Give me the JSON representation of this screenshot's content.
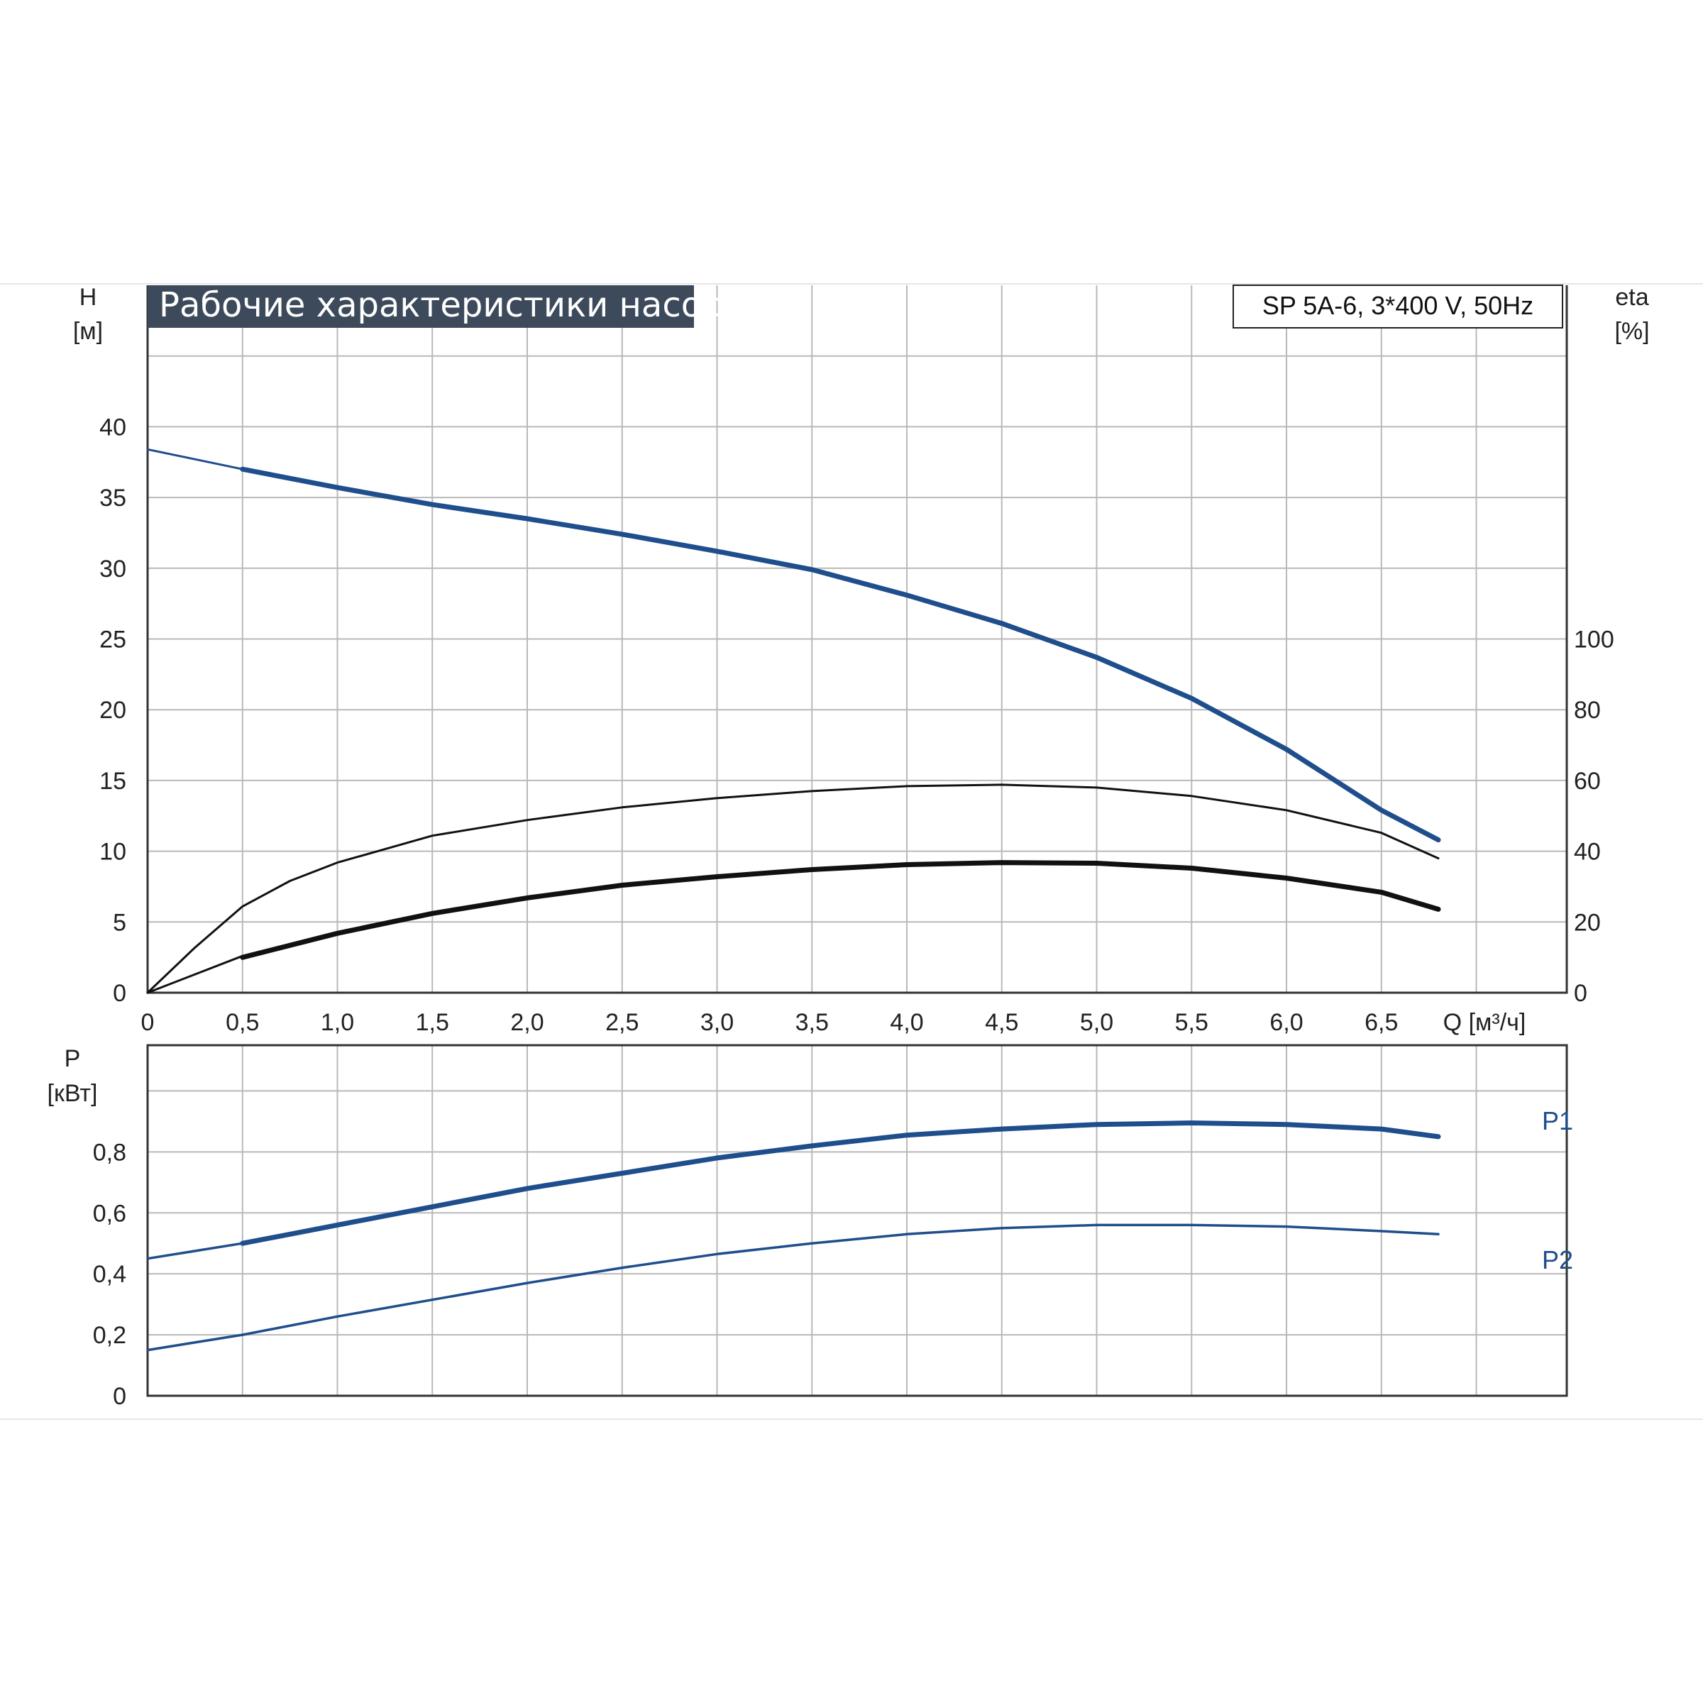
{
  "colors": {
    "head": "#1f4e8c",
    "efficiency": "#111111",
    "power": "#1f4e8c",
    "title_background": "#3d4a5c",
    "grid": "#b9b9b9"
  },
  "chart_data": [
    {
      "type": "line",
      "title": "Рабочие характеристики насоса",
      "model": "SP 5A-6, 3*400 V, 50Hz",
      "xlabel": "Q [м³/ч]",
      "x_ticks": [
        "0",
        "0,5",
        "1,0",
        "1,5",
        "2,0",
        "2,5",
        "3,0",
        "3,5",
        "4,0",
        "4,5",
        "5,0",
        "5,5",
        "6,0",
        "6,5"
      ],
      "xlim": [
        0,
        7.5
      ],
      "ylabel_left": [
        "H",
        "[м]"
      ],
      "y_ticks_left": [
        "0",
        "5",
        "10",
        "15",
        "20",
        "25",
        "30",
        "35",
        "40"
      ],
      "ylim_left": [
        0,
        50
      ],
      "ylabel_right": [
        "eta",
        "[%]"
      ],
      "y_ticks_right": [
        "0",
        "20",
        "40",
        "60",
        "80",
        "100"
      ],
      "ylim_right": [
        0,
        200
      ],
      "grid": true,
      "series": [
        {
          "axis": "left",
          "style": "thin",
          "points": [
            [
              0,
              38.4
            ],
            [
              0.5,
              37.0
            ]
          ]
        },
        {
          "axis": "left",
          "style": "bold",
          "points": [
            [
              0.5,
              37.0
            ],
            [
              1.0,
              35.7
            ],
            [
              1.5,
              34.5
            ],
            [
              2.0,
              33.5
            ],
            [
              2.5,
              32.4
            ],
            [
              3.0,
              31.2
            ],
            [
              3.5,
              29.9
            ],
            [
              4.0,
              28.1
            ],
            [
              4.5,
              26.1
            ],
            [
              5.0,
              23.7
            ],
            [
              5.5,
              20.8
            ],
            [
              6.0,
              17.2
            ],
            [
              6.5,
              12.9
            ],
            [
              6.8,
              10.8
            ]
          ]
        },
        {
          "axis": "right",
          "style": "thin",
          "points": [
            [
              0,
              0
            ],
            [
              0.25,
              12.8
            ],
            [
              0.5,
              24.4
            ],
            [
              0.75,
              31.6
            ],
            [
              1.0,
              36.8
            ],
            [
              1.5,
              44.4
            ],
            [
              2.0,
              48.8
            ],
            [
              2.5,
              52.4
            ],
            [
              3.0,
              55.0
            ],
            [
              3.5,
              57.0
            ],
            [
              4.0,
              58.4
            ],
            [
              4.5,
              58.8
            ],
            [
              5.0,
              58.0
            ],
            [
              5.5,
              55.6
            ],
            [
              6.0,
              51.6
            ],
            [
              6.5,
              45.2
            ],
            [
              6.8,
              38.0
            ]
          ]
        },
        {
          "axis": "right",
          "style": "thin",
          "points": [
            [
              0,
              0
            ],
            [
              0.5,
              10.4
            ]
          ]
        },
        {
          "axis": "right",
          "style": "bold",
          "points": [
            [
              0.5,
              10.0
            ],
            [
              1.0,
              16.8
            ],
            [
              1.5,
              22.4
            ],
            [
              2.0,
              26.8
            ],
            [
              2.5,
              30.4
            ],
            [
              3.0,
              32.8
            ],
            [
              3.5,
              34.8
            ],
            [
              4.0,
              36.2
            ],
            [
              4.5,
              36.8
            ],
            [
              5.0,
              36.6
            ],
            [
              5.5,
              35.2
            ],
            [
              6.0,
              32.4
            ],
            [
              6.5,
              28.4
            ],
            [
              6.8,
              23.6
            ]
          ]
        }
      ]
    },
    {
      "type": "line",
      "ylabel": [
        "P",
        "[кВт]"
      ],
      "y_ticks": [
        "0",
        "0,2",
        "0,4",
        "0,6",
        "0,8"
      ],
      "ylim": [
        0,
        1.15
      ],
      "xlim": [
        0,
        7.5
      ],
      "grid": true,
      "series": [
        {
          "name": "P1",
          "segments": [
            {
              "style": "thin",
              "points": [
                [
                  0,
                  0.45
                ],
                [
                  0.5,
                  0.5
                ]
              ]
            },
            {
              "style": "bold",
              "points": [
                [
                  0.5,
                  0.5
                ],
                [
                  1.0,
                  0.56
                ],
                [
                  1.5,
                  0.62
                ],
                [
                  2.0,
                  0.68
                ],
                [
                  2.5,
                  0.73
                ],
                [
                  3.0,
                  0.78
                ],
                [
                  3.5,
                  0.82
                ],
                [
                  4.0,
                  0.855
                ],
                [
                  4.5,
                  0.875
                ],
                [
                  5.0,
                  0.89
                ],
                [
                  5.5,
                  0.895
                ],
                [
                  6.0,
                  0.89
                ],
                [
                  6.5,
                  0.875
                ],
                [
                  6.8,
                  0.85
                ]
              ]
            }
          ]
        },
        {
          "name": "P2",
          "segments": [
            {
              "style": "thin",
              "points": [
                [
                  0,
                  0.15
                ],
                [
                  0.5,
                  0.2
                ],
                [
                  1.0,
                  0.26
                ],
                [
                  1.5,
                  0.315
                ],
                [
                  2.0,
                  0.37
                ],
                [
                  2.5,
                  0.42
                ],
                [
                  3.0,
                  0.465
                ],
                [
                  3.5,
                  0.5
                ],
                [
                  4.0,
                  0.53
                ],
                [
                  4.5,
                  0.55
                ],
                [
                  5.0,
                  0.56
                ],
                [
                  5.5,
                  0.56
                ],
                [
                  6.0,
                  0.555
                ],
                [
                  6.5,
                  0.54
                ],
                [
                  6.8,
                  0.53
                ]
              ]
            }
          ]
        }
      ]
    }
  ]
}
